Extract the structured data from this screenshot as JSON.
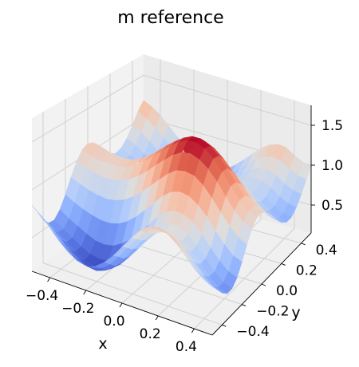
{
  "chart_data": {
    "type": "surface",
    "title": "m reference",
    "xlabel": "x",
    "ylabel": "y",
    "zlabel": "",
    "xlim": [
      -0.5,
      0.5
    ],
    "ylim": [
      -0.5,
      0.5
    ],
    "zlim": [
      0.15,
      1.75
    ],
    "xticks": [
      "−0.4",
      "−0.2",
      "0.0",
      "0.2",
      "0.4"
    ],
    "yticks": [
      "−0.4",
      "−0.2",
      "0.0",
      "0.2",
      "0.4"
    ],
    "zticks": [
      "0.5",
      "1.0",
      "1.5"
    ],
    "colormap": "coolwarm",
    "grid": true,
    "surface": {
      "x": [
        -0.5,
        -0.45,
        -0.4,
        -0.35,
        -0.3,
        -0.25,
        -0.2,
        -0.15,
        -0.1,
        -0.05,
        0.0,
        0.05,
        0.1,
        0.15,
        0.2,
        0.25,
        0.3,
        0.35,
        0.4,
        0.45,
        0.5
      ],
      "y": [
        -0.5,
        -0.45,
        -0.4,
        -0.35,
        -0.3,
        -0.25,
        -0.2,
        -0.15,
        -0.1,
        -0.05,
        0.0,
        0.05,
        0.1,
        0.15,
        0.2,
        0.25,
        0.3,
        0.35,
        0.4,
        0.45,
        0.5
      ],
      "z": [
        [
          0.84,
          0.73,
          0.61,
          0.53,
          0.52,
          0.59,
          0.71,
          0.86,
          0.99,
          1.08,
          1.11,
          1.08,
          1.01,
          0.91,
          0.83,
          0.79,
          0.81,
          0.88,
          0.99,
          1.11,
          1.2
        ],
        [
          0.77,
          0.66,
          0.55,
          0.47,
          0.46,
          0.53,
          0.66,
          0.82,
          0.96,
          1.05,
          1.08,
          1.05,
          0.98,
          0.88,
          0.79,
          0.75,
          0.76,
          0.83,
          0.94,
          1.05,
          1.15
        ],
        [
          0.68,
          0.58,
          0.47,
          0.4,
          0.4,
          0.48,
          0.62,
          0.79,
          0.94,
          1.03,
          1.06,
          1.03,
          0.95,
          0.85,
          0.75,
          0.69,
          0.7,
          0.76,
          0.86,
          0.98,
          1.08
        ],
        [
          0.58,
          0.49,
          0.39,
          0.33,
          0.34,
          0.43,
          0.59,
          0.77,
          0.92,
          1.03,
          1.06,
          1.02,
          0.94,
          0.82,
          0.71,
          0.64,
          0.63,
          0.68,
          0.78,
          0.89,
          0.98
        ],
        [
          0.5,
          0.41,
          0.33,
          0.27,
          0.29,
          0.39,
          0.57,
          0.76,
          0.93,
          1.04,
          1.07,
          1.03,
          0.93,
          0.8,
          0.68,
          0.59,
          0.57,
          0.6,
          0.69,
          0.79,
          0.88
        ],
        [
          0.44,
          0.36,
          0.28,
          0.24,
          0.27,
          0.38,
          0.57,
          0.78,
          0.96,
          1.07,
          1.1,
          1.05,
          0.94,
          0.8,
          0.66,
          0.55,
          0.51,
          0.53,
          0.6,
          0.69,
          0.78
        ],
        [
          0.42,
          0.35,
          0.27,
          0.24,
          0.28,
          0.4,
          0.6,
          0.82,
          1.01,
          1.12,
          1.15,
          1.1,
          0.97,
          0.81,
          0.65,
          0.53,
          0.48,
          0.48,
          0.53,
          0.61,
          0.69
        ],
        [
          0.45,
          0.38,
          0.31,
          0.28,
          0.32,
          0.46,
          0.66,
          0.89,
          1.08,
          1.2,
          1.22,
          1.16,
          1.03,
          0.85,
          0.68,
          0.54,
          0.46,
          0.45,
          0.49,
          0.56,
          0.63
        ],
        [
          0.53,
          0.46,
          0.39,
          0.36,
          0.41,
          0.54,
          0.75,
          0.98,
          1.17,
          1.29,
          1.31,
          1.24,
          1.1,
          0.91,
          0.72,
          0.57,
          0.48,
          0.46,
          0.48,
          0.54,
          0.6
        ],
        [
          0.64,
          0.58,
          0.51,
          0.48,
          0.52,
          0.65,
          0.86,
          1.09,
          1.28,
          1.39,
          1.41,
          1.33,
          1.18,
          0.98,
          0.79,
          0.63,
          0.53,
          0.49,
          0.51,
          0.56,
          0.61
        ],
        [
          0.78,
          0.72,
          0.65,
          0.61,
          0.66,
          0.78,
          0.98,
          1.2,
          1.38,
          1.49,
          1.5,
          1.42,
          1.26,
          1.06,
          0.86,
          0.7,
          0.6,
          0.56,
          0.57,
          0.61,
          0.66
        ],
        [
          0.92,
          0.86,
          0.79,
          0.75,
          0.79,
          0.91,
          1.1,
          1.31,
          1.48,
          1.58,
          1.58,
          1.5,
          1.34,
          1.14,
          0.94,
          0.78,
          0.68,
          0.64,
          0.64,
          0.68,
          0.74
        ],
        [
          1.05,
          0.98,
          0.91,
          0.87,
          0.9,
          1.01,
          1.19,
          1.39,
          1.55,
          1.64,
          1.64,
          1.55,
          1.39,
          1.19,
          1.0,
          0.85,
          0.75,
          0.72,
          0.73,
          0.77,
          0.83
        ],
        [
          1.14,
          1.06,
          0.98,
          0.93,
          0.96,
          1.06,
          1.23,
          1.42,
          1.58,
          1.66,
          1.65,
          1.56,
          1.4,
          1.21,
          1.03,
          0.89,
          0.81,
          0.79,
          0.81,
          0.86,
          0.93
        ],
        [
          1.17,
          1.09,
          1.0,
          0.95,
          0.97,
          1.06,
          1.22,
          1.41,
          1.55,
          1.63,
          1.61,
          1.52,
          1.37,
          1.19,
          1.03,
          0.91,
          0.85,
          0.85,
          0.88,
          0.95,
          1.03
        ],
        [
          1.15,
          1.06,
          0.97,
          0.91,
          0.92,
          1.01,
          1.16,
          1.34,
          1.48,
          1.55,
          1.53,
          1.44,
          1.3,
          1.14,
          0.99,
          0.89,
          0.85,
          0.87,
          0.93,
          1.01,
          1.1
        ],
        [
          1.08,
          0.98,
          0.89,
          0.82,
          0.83,
          0.91,
          1.06,
          1.23,
          1.37,
          1.43,
          1.42,
          1.33,
          1.2,
          1.05,
          0.92,
          0.84,
          0.82,
          0.86,
          0.94,
          1.04,
          1.14
        ],
        [
          0.98,
          0.88,
          0.78,
          0.71,
          0.72,
          0.79,
          0.93,
          1.1,
          1.23,
          1.3,
          1.29,
          1.21,
          1.09,
          0.95,
          0.83,
          0.76,
          0.76,
          0.81,
          0.9,
          1.02,
          1.13
        ],
        [
          0.87,
          0.77,
          0.67,
          0.6,
          0.6,
          0.67,
          0.81,
          0.97,
          1.1,
          1.17,
          1.16,
          1.09,
          0.98,
          0.85,
          0.74,
          0.68,
          0.68,
          0.73,
          0.83,
          0.95,
          1.06
        ],
        [
          0.79,
          0.68,
          0.58,
          0.51,
          0.51,
          0.58,
          0.71,
          0.87,
          1.0,
          1.07,
          1.07,
          1.01,
          0.9,
          0.78,
          0.68,
          0.62,
          0.62,
          0.68,
          0.78,
          0.9,
          1.01
        ],
        [
          0.74,
          0.64,
          0.54,
          0.47,
          0.47,
          0.54,
          0.67,
          0.82,
          0.95,
          1.03,
          1.03,
          0.97,
          0.87,
          0.76,
          0.66,
          0.6,
          0.6,
          0.66,
          0.76,
          0.88,
          0.99
        ]
      ]
    }
  }
}
